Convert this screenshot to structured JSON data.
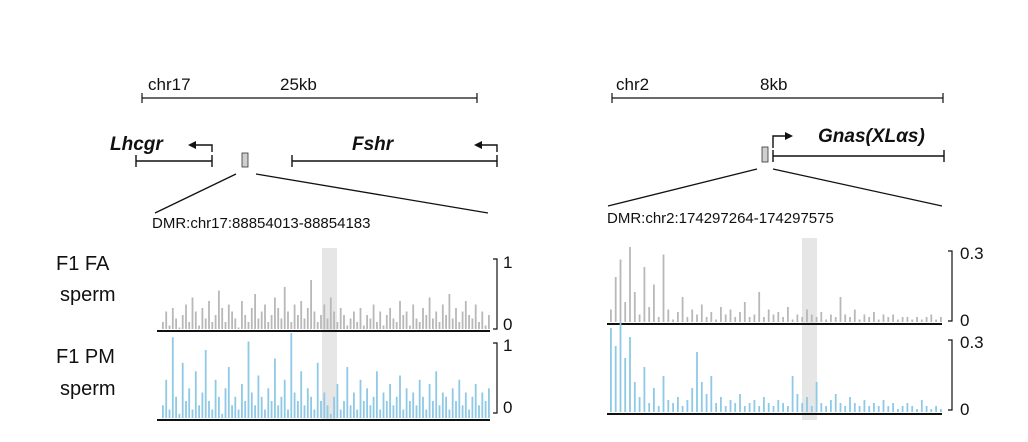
{
  "colors": {
    "fa": "#b8b8b8",
    "pm": "#8ec9e6",
    "highlight": "#e6e6e6",
    "line": "#111111",
    "dmr_box": "#cfcfcf"
  },
  "tracks": [
    {
      "label_line1": "F1 FA",
      "label_line2": "sperm",
      "series": "fa"
    },
    {
      "label_line1": "F1 PM",
      "label_line2": "sperm",
      "series": "pm"
    }
  ],
  "panels": [
    {
      "chrom": "chr17",
      "scale": "25kb",
      "gene_left": "Lhcgr",
      "gene_right": "Fshr",
      "gene_left_strand": "reverse",
      "gene_right_strand": "reverse",
      "dmr": "DMR:chr17:88854013-88854183",
      "ymax": "1",
      "ymin": "0",
      "fa_values": [
        0.1,
        0.25,
        0.05,
        0.3,
        0.15,
        0.0,
        0.2,
        0.35,
        0.1,
        0.45,
        0.25,
        0.05,
        0.3,
        0.15,
        0.4,
        0.1,
        0.2,
        0.55,
        0.3,
        0.1,
        0.35,
        0.25,
        0.15,
        0.0,
        0.4,
        0.2,
        0.1,
        0.3,
        0.5,
        0.15,
        0.25,
        0.35,
        0.1,
        0.2,
        0.45,
        0.3,
        0.15,
        0.6,
        0.25,
        0.1,
        0.35,
        0.2,
        0.4,
        0.15,
        0.3,
        0.7,
        0.25,
        0.1,
        0.2,
        0.35,
        0.15,
        0.45,
        0.25,
        0.1,
        0.3,
        0.2,
        0.05,
        0.15,
        0.25,
        0.1,
        0.3,
        0.05,
        0.2,
        0.15,
        0.35,
        0.1,
        0.25,
        0.05,
        0.2,
        0.3,
        0.15,
        0.1,
        0.4,
        0.2,
        0.25,
        0.05,
        0.35,
        0.15,
        0.1,
        0.3,
        0.2,
        0.45,
        0.15,
        0.25,
        0.1,
        0.35,
        0.2,
        0.5,
        0.15,
        0.3,
        0.1,
        0.25,
        0.4,
        0.2,
        0.15,
        0.35,
        0.1,
        0.25,
        0.05,
        0.2
      ],
      "pm_values": [
        0.15,
        0.45,
        0.1,
        0.95,
        0.25,
        0.05,
        0.65,
        0.2,
        0.35,
        0.1,
        0.55,
        0.15,
        0.3,
        0.8,
        0.2,
        0.1,
        0.45,
        0.25,
        0.05,
        0.35,
        0.6,
        0.15,
        0.25,
        0.1,
        0.4,
        0.2,
        0.9,
        0.3,
        0.15,
        0.5,
        0.25,
        0.1,
        0.35,
        0.2,
        0.7,
        0.15,
        0.25,
        0.45,
        0.1,
        1.0,
        0.3,
        0.2,
        0.55,
        0.15,
        0.35,
        0.25,
        0.1,
        0.65,
        0.2,
        0.3,
        0.15,
        0.05,
        0.25,
        0.4,
        0.1,
        0.2,
        0.6,
        0.15,
        0.3,
        0.1,
        0.45,
        0.2,
        0.35,
        0.15,
        0.25,
        0.55,
        0.1,
        0.3,
        0.2,
        0.4,
        0.15,
        0.25,
        0.5,
        0.1,
        0.35,
        0.2,
        0.3,
        0.15,
        0.45,
        0.25,
        0.1,
        0.4,
        0.2,
        0.55,
        0.15,
        0.3,
        0.25,
        0.1,
        0.35,
        0.2,
        0.45,
        0.15,
        0.3,
        0.1,
        0.25,
        0.4,
        0.15,
        0.3,
        0.2,
        0.35
      ]
    },
    {
      "chrom": "chr2",
      "scale": "8kb",
      "gene_right": "Gnas(XLαs)",
      "gene_right_strand": "forward",
      "dmr": "DMR:chr2:174297264-174297575",
      "ymax": "0.3",
      "ymin": "0",
      "fa_values": [
        0.05,
        0.18,
        0.25,
        0.08,
        0.3,
        0.12,
        0.03,
        0.22,
        0.06,
        0.15,
        0.02,
        0.27,
        0.05,
        0.01,
        0.04,
        0.1,
        0.02,
        0.05,
        0.03,
        0.07,
        0.02,
        0.04,
        0.01,
        0.06,
        0.03,
        0.05,
        0.02,
        0.04,
        0.08,
        0.02,
        0.03,
        0.12,
        0.02,
        0.05,
        0.03,
        0.04,
        0.02,
        0.06,
        0.01,
        0.03,
        0.02,
        0.05,
        0.03,
        0.02,
        0.04,
        0.01,
        0.03,
        0.02,
        0.1,
        0.03,
        0.02,
        0.05,
        0.01,
        0.03,
        0.02,
        0.04,
        0.01,
        0.03,
        0.02,
        0.03,
        0.01,
        0.02,
        0.02,
        0.01,
        0.02,
        0.01,
        0.02,
        0.03,
        0.01,
        0.02
      ],
      "pm_values": [
        0.28,
        0.22,
        0.3,
        0.18,
        0.25,
        0.1,
        0.05,
        0.15,
        0.03,
        0.08,
        0.02,
        0.12,
        0.04,
        0.03,
        0.05,
        0.02,
        0.04,
        0.08,
        0.2,
        0.1,
        0.06,
        0.12,
        0.03,
        0.05,
        0.02,
        0.04,
        0.03,
        0.06,
        0.02,
        0.03,
        0.04,
        0.02,
        0.05,
        0.03,
        0.02,
        0.04,
        0.03,
        0.02,
        0.12,
        0.06,
        0.03,
        0.05,
        0.02,
        0.1,
        0.03,
        0.02,
        0.04,
        0.06,
        0.03,
        0.02,
        0.05,
        0.03,
        0.02,
        0.04,
        0.02,
        0.03,
        0.02,
        0.04,
        0.02,
        0.03,
        0.01,
        0.02,
        0.03,
        0.02,
        0.01,
        0.04,
        0.02,
        0.01,
        0.02,
        0.01
      ]
    }
  ]
}
